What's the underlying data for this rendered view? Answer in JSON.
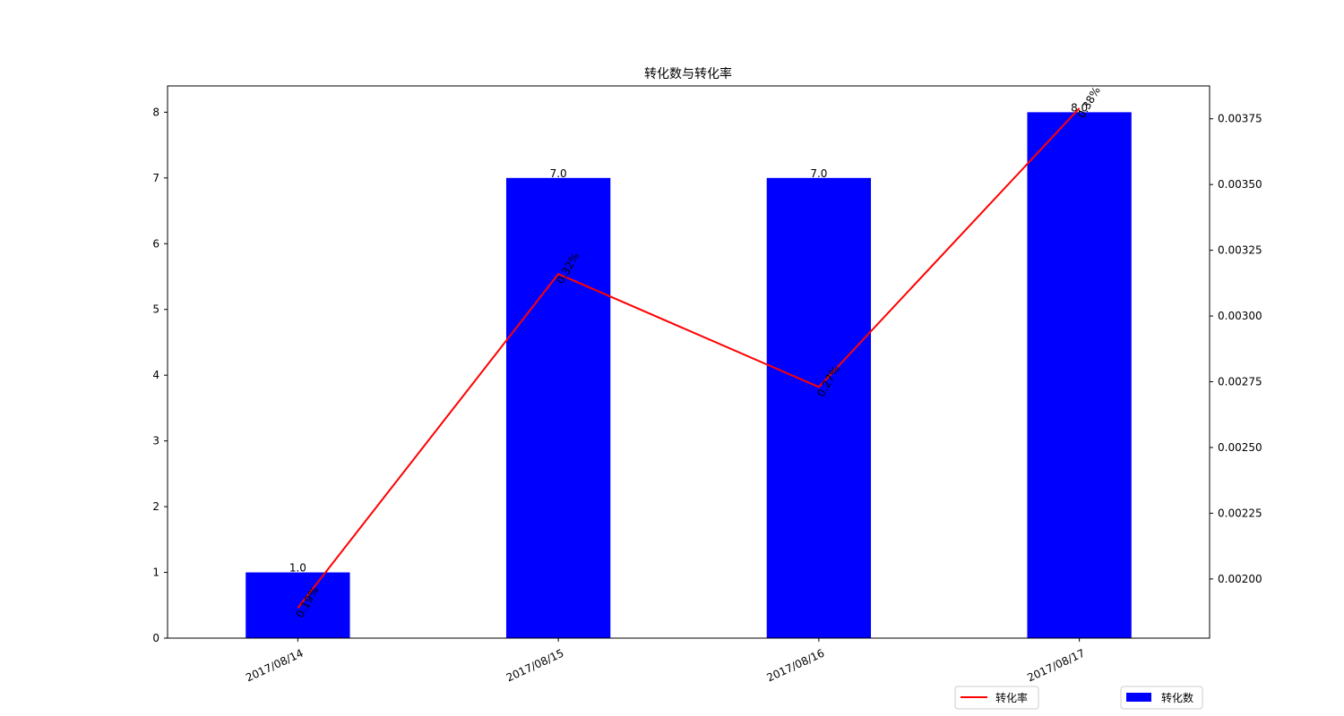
{
  "chart_data": {
    "type": "bar",
    "title": "转化数与转化率",
    "categories": [
      "2017/08/14",
      "2017/08/15",
      "2017/08/16",
      "2017/08/17"
    ],
    "series": [
      {
        "name": "转化数",
        "type": "bar",
        "axis": "left",
        "color": "#0000ff",
        "values": [
          1.0,
          7.0,
          7.0,
          8.0
        ],
        "labels": [
          "1.0",
          "7.0",
          "7.0",
          "8.0"
        ]
      },
      {
        "name": "转化率",
        "type": "line",
        "axis": "right",
        "color": "#ff0000",
        "values": [
          0.00189,
          0.00316,
          0.00273,
          0.00379
        ],
        "labels": [
          "0.19%",
          "0.32%",
          "0.27%",
          "0.38%"
        ]
      }
    ],
    "y_left": {
      "ylim": [
        0,
        8.4
      ],
      "ticks": [
        0,
        1,
        2,
        3,
        4,
        5,
        6,
        7,
        8
      ],
      "tick_labels": [
        "0",
        "1",
        "2",
        "3",
        "4",
        "5",
        "6",
        "7",
        "8"
      ]
    },
    "y_right": {
      "ylim": [
        0.001775,
        0.003875
      ],
      "ticks": [
        0.002,
        0.00225,
        0.0025,
        0.00275,
        0.003,
        0.00325,
        0.0035,
        0.00375
      ],
      "tick_labels": [
        "0.00200",
        "0.00225",
        "0.00250",
        "0.00275",
        "0.00300",
        "0.00325",
        "0.00350",
        "0.00375"
      ]
    },
    "grid": false,
    "legend": [
      "bottom-right"
    ]
  }
}
